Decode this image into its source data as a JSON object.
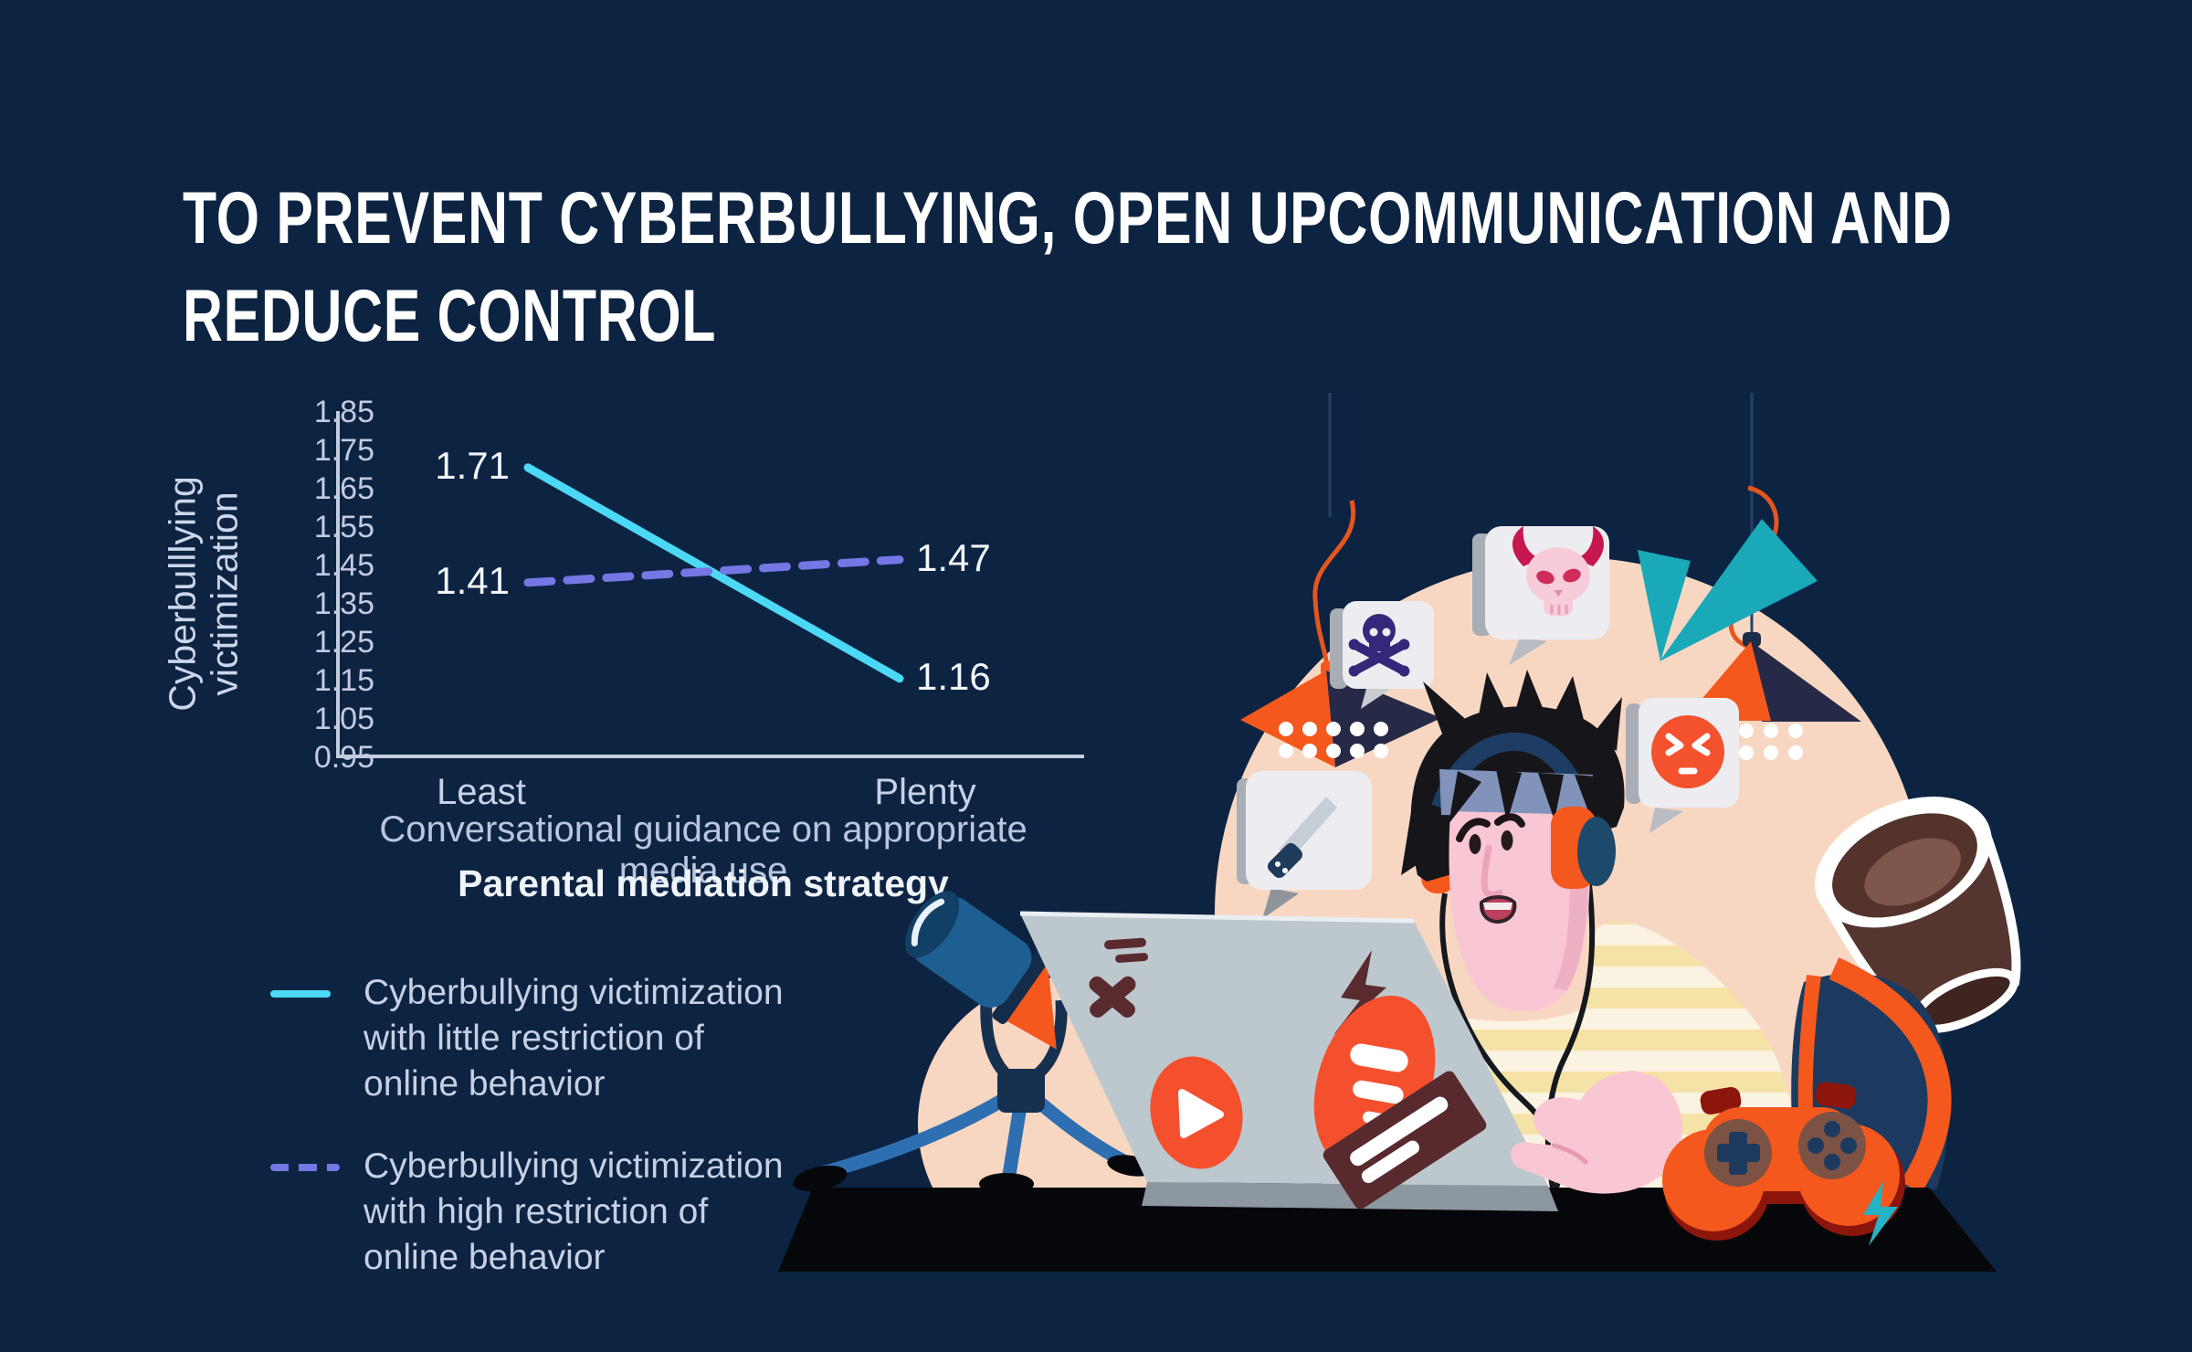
{
  "header": {
    "title_line1": "TO PREVENT CYBERBULLYING, OPEN UPCOMMUNICATION AND",
    "title_line2": "REDUCE CONTROL"
  },
  "chart_data": {
    "type": "line",
    "categories": [
      "Least",
      "Plenty"
    ],
    "series": [
      {
        "name": "Cyberbullying victimization with little restriction of online behavior",
        "line_style": "solid",
        "color": "#4BD9F6",
        "values": [
          1.71,
          1.16
        ]
      },
      {
        "name": "Cyberbullying victimization with high restriction of online behavior",
        "line_style": "dashed",
        "color": "#7477E4",
        "values": [
          1.41,
          1.47
        ]
      }
    ],
    "xlabel": "Conversational guidance on appropriate media use",
    "xlabel_secondary": "Parental mediation strategy",
    "ylabel": "Cyberbulllying victimization",
    "yticks": [
      "1.85",
      "1.75",
      "1.65",
      "1.55",
      "1.45",
      "1.35",
      "1.25",
      "1.15",
      "1.05",
      "0.95"
    ],
    "ylim": [
      0.95,
      1.85
    ],
    "grid": false,
    "legend_position": "bottom-left"
  },
  "legend": {
    "items": [
      {
        "swatch": "cyan-solid-line",
        "lines": [
          "Cyberbullying victimization",
          "with little restriction of",
          "online behavior"
        ]
      },
      {
        "swatch": "purple-dashed-line",
        "lines": [
          "Cyberbullying victimization",
          "with high restriction of",
          "online behavior"
        ]
      }
    ]
  },
  "illustration": {
    "icons": [
      "skull-crossbones-icon",
      "devil-skull-icon",
      "angry-face-icon",
      "knife-icon",
      "pendant-lamp-icon",
      "teal-triangles",
      "coffee-cup",
      "laptop",
      "telescope-tripod",
      "gamepad",
      "headphones-boy",
      "lightning-sticker",
      "play-sticker"
    ]
  },
  "colors": {
    "background": "#0D2342",
    "accent_cyan": "#4BD9F6",
    "accent_purple": "#7477E4",
    "axis_text": "#C8D2E6",
    "peach": "#F8D7C2",
    "orange": "#F4581D",
    "teal": "#1AA9B8",
    "sticker_red": "#F4502E"
  }
}
